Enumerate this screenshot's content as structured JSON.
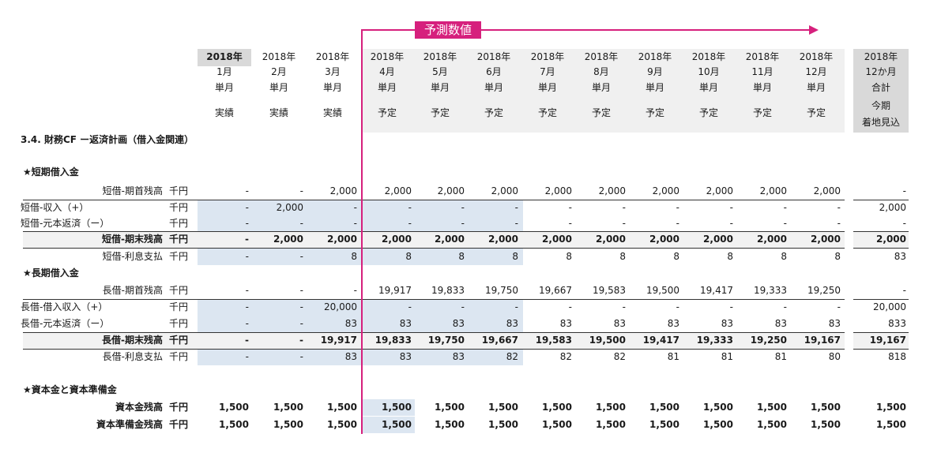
{
  "forecast_label": "予測数値",
  "section_title": "3.4. 財務CF ー返済計画（借入金関連）",
  "columns": [
    {
      "year": "2018年",
      "month": "1月",
      "kind": "単月",
      "status": "実績",
      "year_bold": true
    },
    {
      "year": "2018年",
      "month": "2月",
      "kind": "単月",
      "status": "実績"
    },
    {
      "year": "2018年",
      "month": "3月",
      "kind": "単月",
      "status": "実績"
    },
    {
      "year": "2018年",
      "month": "4月",
      "kind": "単月",
      "status": "予定"
    },
    {
      "year": "2018年",
      "month": "5月",
      "kind": "単月",
      "status": "予定"
    },
    {
      "year": "2018年",
      "month": "6月",
      "kind": "単月",
      "status": "予定"
    },
    {
      "year": "2018年",
      "month": "7月",
      "kind": "単月",
      "status": "予定"
    },
    {
      "year": "2018年",
      "month": "8月",
      "kind": "単月",
      "status": "予定"
    },
    {
      "year": "2018年",
      "month": "9月",
      "kind": "単月",
      "status": "予定"
    },
    {
      "year": "2018年",
      "month": "10月",
      "kind": "単月",
      "status": "予定"
    },
    {
      "year": "2018年",
      "month": "11月",
      "kind": "単月",
      "status": "予定"
    },
    {
      "year": "2018年",
      "month": "12月",
      "kind": "単月",
      "status": "予定"
    }
  ],
  "total_column": {
    "year": "2018年",
    "month": "12か月",
    "kind": "合計",
    "status_line1": "今期",
    "status_line2": "着地見込"
  },
  "groups": [
    {
      "title": "★短期借入金",
      "rows": [
        {
          "label": "短借-期首残高",
          "unit": "千円",
          "align": "right",
          "bold": false,
          "input": false,
          "line_above": false,
          "values": [
            "-",
            "-",
            "2,000",
            "2,000",
            "2,000",
            "2,000",
            "2,000",
            "2,000",
            "2,000",
            "2,000",
            "2,000",
            "2,000"
          ],
          "total": "-"
        },
        {
          "label": "短借-収入（+）",
          "unit": "千円",
          "align": "left",
          "bold": false,
          "input": true,
          "line_above": true,
          "values": [
            "-",
            "2,000",
            "-",
            "-",
            "-",
            "-",
            "-",
            "-",
            "-",
            "-",
            "-",
            "-"
          ],
          "total": "2,000"
        },
        {
          "label": "短借-元本返済（ー）",
          "unit": "千円",
          "align": "left",
          "bold": false,
          "input": true,
          "line_above": false,
          "values": [
            "-",
            "-",
            "-",
            "-",
            "-",
            "-",
            "-",
            "-",
            "-",
            "-",
            "-",
            "-"
          ],
          "total": "-"
        },
        {
          "label": "短借-期末残高",
          "unit": "千円",
          "align": "right",
          "bold": true,
          "input": false,
          "line_above": true,
          "total_row": true,
          "values": [
            "-",
            "2,000",
            "2,000",
            "2,000",
            "2,000",
            "2,000",
            "2,000",
            "2,000",
            "2,000",
            "2,000",
            "2,000",
            "2,000"
          ],
          "total": "2,000"
        },
        {
          "label": "短借-利息支払",
          "unit": "千円",
          "align": "right",
          "bold": false,
          "input": true,
          "line_above": false,
          "values": [
            "-",
            "-",
            "8",
            "8",
            "8",
            "8",
            "8",
            "8",
            "8",
            "8",
            "8",
            "8"
          ],
          "total": "83"
        }
      ]
    },
    {
      "title": "★長期借入金",
      "rows": [
        {
          "label": "長借-期首残高",
          "unit": "千円",
          "align": "right",
          "bold": false,
          "input": false,
          "line_above": false,
          "values": [
            "-",
            "-",
            "-",
            "19,917",
            "19,833",
            "19,750",
            "19,667",
            "19,583",
            "19,500",
            "19,417",
            "19,333",
            "19,250"
          ],
          "total": "-"
        },
        {
          "label": "長借-借入収入（+）",
          "unit": "千円",
          "align": "left",
          "bold": false,
          "input": true,
          "line_above": true,
          "values": [
            "-",
            "-",
            "20,000",
            "-",
            "-",
            "-",
            "-",
            "-",
            "-",
            "-",
            "-",
            "-"
          ],
          "total": "20,000"
        },
        {
          "label": "長借-元本返済（ー）",
          "unit": "千円",
          "align": "left",
          "bold": false,
          "input": true,
          "line_above": false,
          "values": [
            "-",
            "-",
            "83",
            "83",
            "83",
            "83",
            "83",
            "83",
            "83",
            "83",
            "83",
            "83"
          ],
          "total": "833"
        },
        {
          "label": "長借-期末残高",
          "unit": "千円",
          "align": "right",
          "bold": true,
          "input": false,
          "line_above": true,
          "total_row": true,
          "values": [
            "-",
            "-",
            "19,917",
            "19,833",
            "19,750",
            "19,667",
            "19,583",
            "19,500",
            "19,417",
            "19,333",
            "19,250",
            "19,167"
          ],
          "total": "19,167"
        },
        {
          "label": "長借-利息支払",
          "unit": "千円",
          "align": "right",
          "bold": false,
          "input": true,
          "line_above": false,
          "values": [
            "-",
            "-",
            "83",
            "83",
            "83",
            "82",
            "82",
            "82",
            "81",
            "81",
            "81",
            "80"
          ],
          "total": "818"
        }
      ]
    },
    {
      "title": "★資本金と資本準備金",
      "rows": [
        {
          "label": "資本金残高",
          "unit": "千円",
          "align": "right",
          "bold": true,
          "input": false,
          "line_above": false,
          "highlight_col": 3,
          "values": [
            "1,500",
            "1,500",
            "1,500",
            "1,500",
            "1,500",
            "1,500",
            "1,500",
            "1,500",
            "1,500",
            "1,500",
            "1,500",
            "1,500"
          ],
          "total": "1,500"
        },
        {
          "label": "資本準備金残高",
          "unit": "千円",
          "align": "right",
          "bold": true,
          "input": false,
          "line_above": false,
          "highlight_col": 3,
          "values": [
            "1,500",
            "1,500",
            "1,500",
            "1,500",
            "1,500",
            "1,500",
            "1,500",
            "1,500",
            "1,500",
            "1,500",
            "1,500",
            "1,500"
          ],
          "total": "1,500"
        }
      ]
    }
  ],
  "colors": {
    "input_fill": "#dce6f1",
    "header_fill": "#f0f0f0",
    "header_first_fill": "#d9d9d9",
    "total_fill": "#d9d9d9",
    "total_row_fill": "#f2f2f2",
    "accent": "#d6207d"
  }
}
